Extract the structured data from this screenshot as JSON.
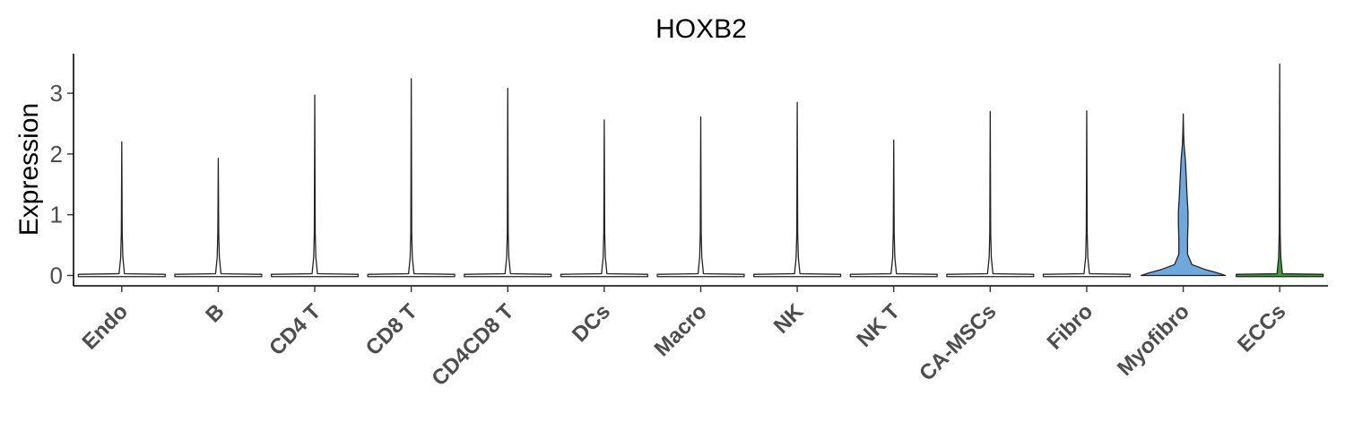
{
  "chart_data": {
    "type": "violin",
    "title": "HOXB2",
    "xlabel": "",
    "ylabel": "Expression",
    "ylim": [
      -0.17,
      3.65
    ],
    "yticks": [
      0,
      1,
      2,
      3
    ],
    "categories": [
      "Endo",
      "B",
      "CD4 T",
      "CD8 T",
      "CD4CD8 T",
      "DCs",
      "Macro",
      "NK",
      "NK T",
      "CA-MSCs",
      "Fibro",
      "Myofibro",
      "ECCs"
    ],
    "max_values": [
      2.2,
      1.93,
      2.97,
      3.24,
      3.08,
      2.56,
      2.61,
      2.85,
      2.23,
      2.7,
      2.71,
      2.66,
      3.48
    ],
    "fill_colors": [
      "#ffffff",
      "#ffffff",
      "#ffffff",
      "#ffffff",
      "#ffffff",
      "#ffffff",
      "#ffffff",
      "#ffffff",
      "#ffffff",
      "#ffffff",
      "#ffffff",
      "#6fa8dc",
      "#3f9a3f"
    ],
    "legend": "none",
    "grid": false
  }
}
